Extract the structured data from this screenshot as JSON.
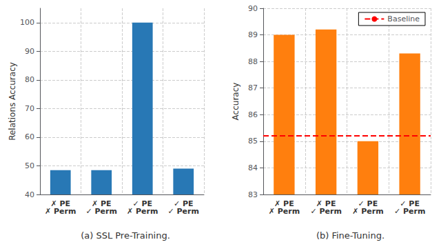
{
  "chart_data": [
    {
      "type": "bar",
      "title": "(a) SSL Pre-Training.",
      "categories": [
        "✗ PE\n✗ Perm",
        "✗ PE\n✓ Perm",
        "✓ PE\n✗ Perm",
        "✓ PE\n✓ Perm"
      ],
      "values": [
        48.5,
        48.5,
        100.0,
        49.0
      ],
      "color": "#2878b5",
      "ylabel": "Relations Accuracy",
      "ylim": [
        40,
        105
      ],
      "yticks": [
        40,
        50,
        60,
        70,
        80,
        90,
        100
      ],
      "grid": true
    },
    {
      "type": "bar",
      "title": "(b) Fine-Tuning.",
      "categories": [
        "✗ PE\n✗ Perm",
        "✗ PE\n✓ Perm",
        "✓ PE\n✗ Perm",
        "✓ PE\n✓ Perm"
      ],
      "values": [
        89.0,
        89.2,
        85.0,
        88.3
      ],
      "color": "#ff7f0e",
      "ylabel": "Accuracy",
      "ylim": [
        83,
        90
      ],
      "yticks": [
        83,
        84,
        85,
        86,
        87,
        88,
        89,
        90
      ],
      "grid": true,
      "baseline": {
        "value": 85.2,
        "label": "Baseline",
        "color": "#ff0000",
        "line_style": "dashed"
      },
      "legend": "upper right"
    }
  ]
}
